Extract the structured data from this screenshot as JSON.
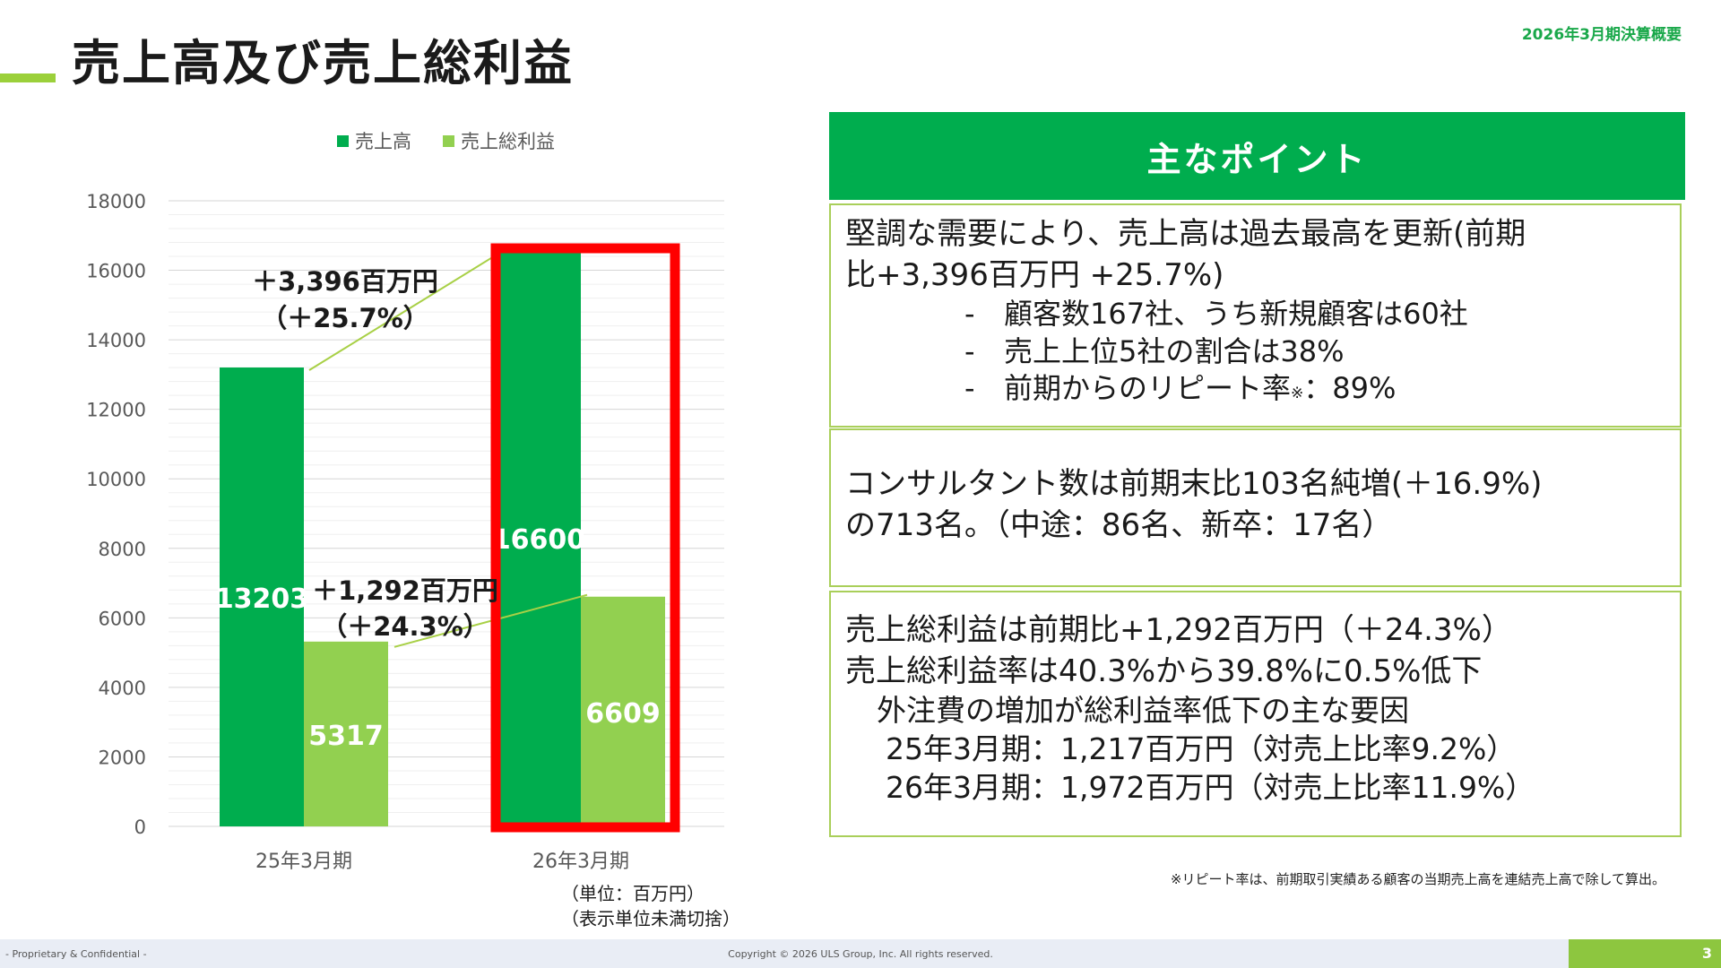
{
  "header": {
    "title": "売上高及び売上総利益",
    "doc_label": "2026年3月期決算概要"
  },
  "chart_data": {
    "type": "bar",
    "categories": [
      "25年3月期",
      "26年3月期"
    ],
    "series": [
      {
        "name": "売上高",
        "values": [
          13203,
          16600
        ],
        "color": "#00ad4e"
      },
      {
        "name": "売上総利益",
        "values": [
          5317,
          6609
        ],
        "color": "#92d050"
      }
    ],
    "ylim": [
      0,
      18000
    ],
    "yticks": [
      0,
      2000,
      4000,
      6000,
      8000,
      10000,
      12000,
      14000,
      16000,
      18000
    ],
    "grid": true,
    "legend": "top",
    "annotations": [
      {
        "line1": "＋3,396百万円",
        "line2": "（＋25.7%）"
      },
      {
        "line1": "＋1,292百万円",
        "line2": "（＋24.3%）"
      }
    ],
    "highlight": "26年3月期",
    "highlight_color": "#ff0000",
    "unit_note": [
      "（単位：百万円）",
      "（表示単位未満切捨）"
    ]
  },
  "points": {
    "header": "主なポイント",
    "box1": {
      "lines": [
        "堅調な需要により、売上高は過去最高を更新(前期",
        "比+3,396百万円 +25.7%)"
      ],
      "bullets": [
        "顧客数167社、うち新規顧客は60社",
        "売上上位5社の割合は38%",
        "前期からのリピート率"
      ],
      "bullet_mark": "-",
      "note_mark": "※",
      "bullet3_suffix": "：89%"
    },
    "box2": {
      "lines": [
        "コンサルタント数は前期末比103名純増(＋16.9%)",
        "の713名。（中途：86名、新卒：17名）"
      ]
    },
    "box3": {
      "lines": [
        "売上総利益は前期比+1,292百万円（＋24.3%）",
        "売上総利益率は40.3%から39.8%に0.5%低下"
      ],
      "sub1": "外注費の増加が総利益率低下の主な要因",
      "sub2": [
        "25年3月期：1,217百万円（対売上比率9.2%）",
        "26年3月期：1,972百万円（対売上比率11.9%）"
      ]
    }
  },
  "footnote": "※リピート率は、前期取引実績ある顧客の当期売上高を連結売上高で除して算出。",
  "footer": {
    "left": "- Proprietary & Confidential -",
    "center": "Copyright © 2026 ULS Group, Inc.  All rights reserved.",
    "page": "3"
  }
}
